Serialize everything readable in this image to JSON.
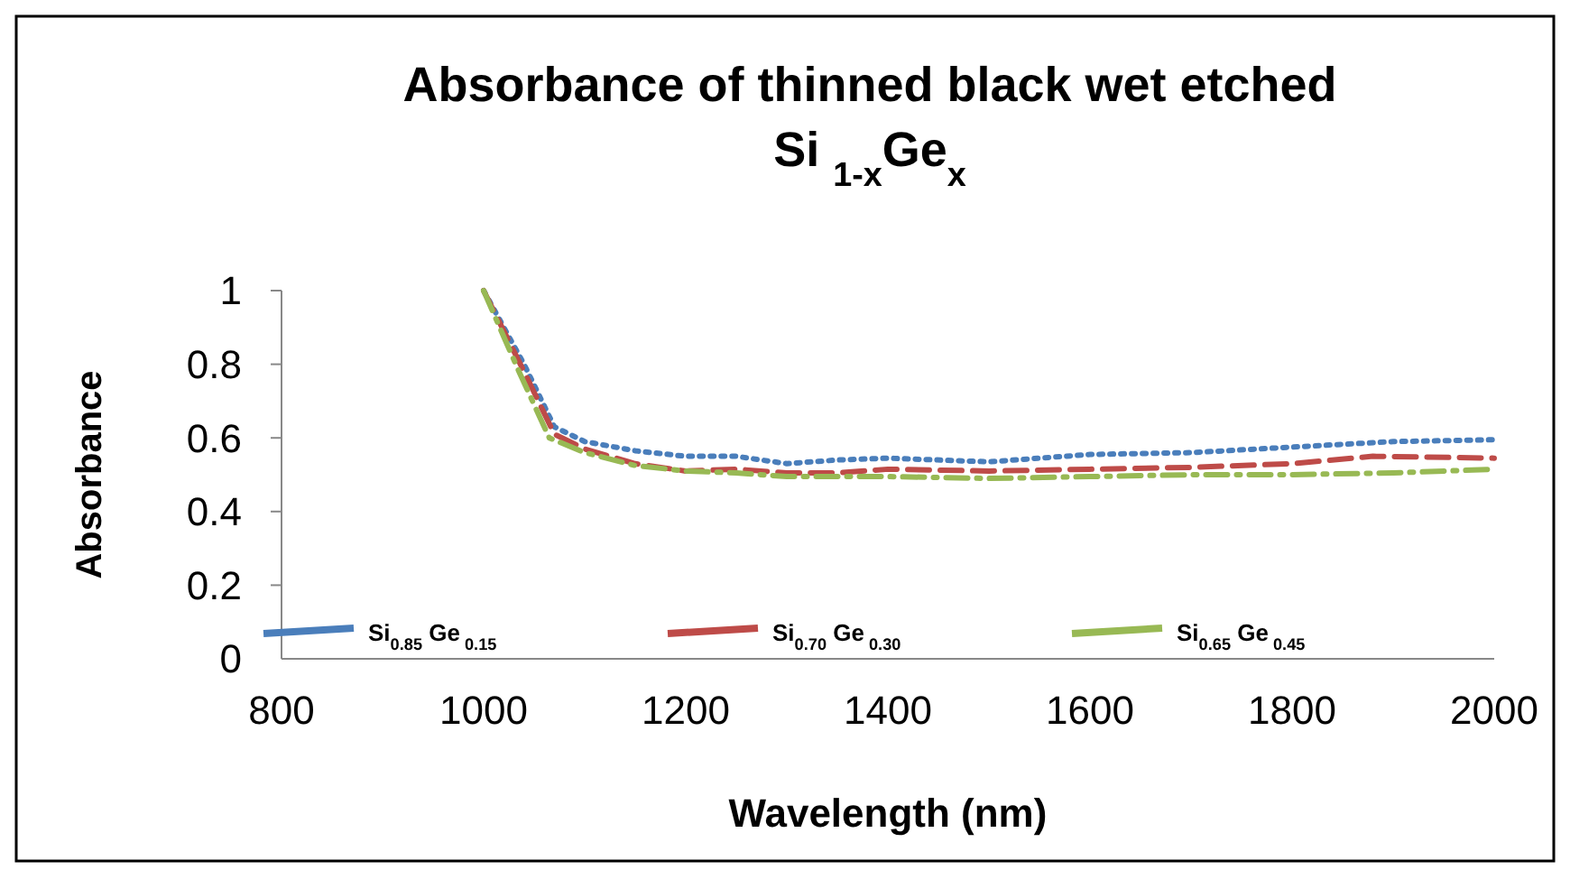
{
  "chart_data": {
    "type": "line",
    "title": "Absorbance of thinned black wet etched Si $_{1-x}$Ge$_{x}$",
    "xlabel": "Wavelength (nm)",
    "ylabel": "Absorbance",
    "xlim": [
      800,
      2000
    ],
    "xticks": [
      800,
      1000,
      1200,
      1400,
      1600,
      1800,
      2000
    ],
    "ylim": [
      0,
      1
    ],
    "yticks": [
      0,
      0.2,
      0.4,
      0.6,
      0.8,
      1
    ],
    "grid": false,
    "legend": "bottom",
    "marker": "none",
    "series": [
      {
        "name": "Si$_{0.85}$ Ge$_{ 0.15}$",
        "color": "#4a7ebb",
        "line_style": "dotted",
        "x": [
          1000,
          1040,
          1070,
          1100,
          1150,
          1200,
          1250,
          1300,
          1350,
          1400,
          1500,
          1600,
          1700,
          1800,
          1900,
          2000
        ],
        "values": [
          1.0,
          0.8,
          0.63,
          0.59,
          0.565,
          0.55,
          0.55,
          0.53,
          0.54,
          0.545,
          0.535,
          0.555,
          0.56,
          0.575,
          0.59,
          0.595
        ]
      },
      {
        "name": "Si$_{0.70}$ Ge$_{ 0.30}$",
        "color": "#be4b48",
        "line_style": "dashed",
        "x": [
          1000,
          1040,
          1070,
          1100,
          1150,
          1200,
          1250,
          1300,
          1350,
          1400,
          1500,
          1600,
          1700,
          1800,
          1880,
          2000
        ],
        "values": [
          1.0,
          0.78,
          0.61,
          0.57,
          0.53,
          0.51,
          0.515,
          0.505,
          0.505,
          0.515,
          0.51,
          0.515,
          0.52,
          0.53,
          0.55,
          0.545
        ]
      },
      {
        "name": "Si$_{0.65}$ Ge$_{ 0.45}$",
        "color": "#98b954",
        "line_style": "dashdot",
        "x": [
          1000,
          1035,
          1065,
          1100,
          1150,
          1200,
          1250,
          1300,
          1350,
          1400,
          1500,
          1600,
          1700,
          1800,
          1900,
          2000
        ],
        "values": [
          1.0,
          0.78,
          0.6,
          0.56,
          0.525,
          0.51,
          0.505,
          0.495,
          0.495,
          0.495,
          0.49,
          0.495,
          0.5,
          0.5,
          0.505,
          0.515
        ]
      }
    ]
  }
}
